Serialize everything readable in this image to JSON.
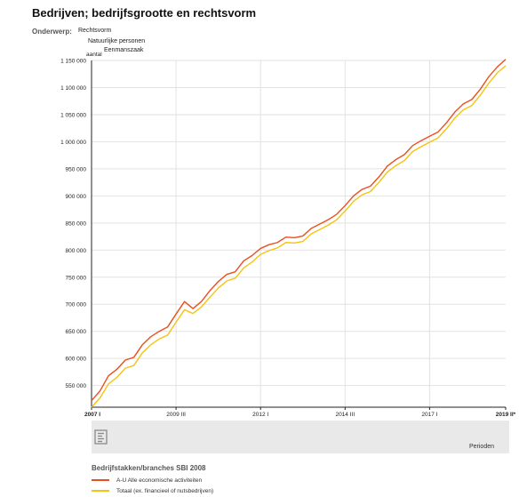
{
  "title": "Bedrijven; bedrijfsgrootte en rechtsvorm",
  "subject": {
    "label": "Onderwerp:",
    "lines": [
      "Rechtsvorm",
      "Natuurlijke personen",
      "Eenmanszaak"
    ]
  },
  "colors": {
    "series1": "#e8501e",
    "series2": "#f4c40f",
    "grid": "#e2e2e2",
    "icon_box": "#e9e9e9",
    "icon": "#8a8a8a"
  },
  "legend": {
    "title": "Bedrijfstakken/branches SBI 2008"
  },
  "chart_data": {
    "type": "line",
    "ylabel": "aantal",
    "xlabel": "Perioden",
    "ylim": [
      510000,
      1150000
    ],
    "yticks": [
      {
        "value": 550000,
        "label": "550 000"
      },
      {
        "value": 600000,
        "label": "600 000"
      },
      {
        "value": 650000,
        "label": "650 000"
      },
      {
        "value": 700000,
        "label": "700 000"
      },
      {
        "value": 750000,
        "label": "750 000"
      },
      {
        "value": 800000,
        "label": "800 000"
      },
      {
        "value": 850000,
        "label": "850 000"
      },
      {
        "value": 900000,
        "label": "900 000"
      },
      {
        "value": 950000,
        "label": "950 000"
      },
      {
        "value": 1000000,
        "label": "1 000 000"
      },
      {
        "value": 1050000,
        "label": "1 050 000"
      },
      {
        "value": 1100000,
        "label": "1 100 000"
      },
      {
        "value": 1150000,
        "label": "1 150 000"
      }
    ],
    "x": [
      "2007 I",
      "2007 II",
      "2007 III",
      "2007 IV",
      "2008 I",
      "2008 II",
      "2008 III",
      "2008 IV",
      "2009 I",
      "2009 II",
      "2009 III",
      "2009 IV",
      "2010 I",
      "2010 II",
      "2010 III",
      "2010 IV",
      "2011 I",
      "2011 II",
      "2011 III",
      "2011 IV",
      "2012 I",
      "2012 II",
      "2012 III",
      "2012 IV",
      "2013 I",
      "2013 II",
      "2013 III",
      "2013 IV",
      "2014 I",
      "2014 II",
      "2014 III",
      "2014 IV",
      "2015 I",
      "2015 II",
      "2015 III",
      "2015 IV",
      "2016 I",
      "2016 II",
      "2016 III",
      "2016 IV",
      "2017 I",
      "2017 II",
      "2017 III",
      "2017 IV",
      "2018 I",
      "2018 II",
      "2018 III",
      "2018 IV",
      "2019 I",
      "2019 II"
    ],
    "xticks": [
      {
        "index": 0,
        "label": "2007 I",
        "bold": true,
        "anchor": "start"
      },
      {
        "index": 10,
        "label": "2009 III",
        "bold": false,
        "anchor": "middle"
      },
      {
        "index": 20,
        "label": "2012 I",
        "bold": false,
        "anchor": "middle"
      },
      {
        "index": 30,
        "label": "2014 III",
        "bold": false,
        "anchor": "middle"
      },
      {
        "index": 40,
        "label": "2017 I",
        "bold": false,
        "anchor": "middle"
      },
      {
        "index": 49,
        "label": "2019 II*",
        "bold": true,
        "anchor": "middle"
      }
    ],
    "series": [
      {
        "name": "A-U Alle economische activiteiten",
        "values": [
          522000,
          540000,
          568000,
          580000,
          597000,
          602000,
          625000,
          640000,
          650000,
          658000,
          682000,
          705000,
          692000,
          705000,
          725000,
          742000,
          755000,
          760000,
          780000,
          790000,
          803000,
          810000,
          814000,
          824000,
          823000,
          826000,
          840000,
          848000,
          856000,
          866000,
          882000,
          900000,
          912000,
          918000,
          935000,
          955000,
          967000,
          976000,
          993000,
          1002000,
          1010000,
          1018000,
          1035000,
          1055000,
          1070000,
          1078000,
          1097000,
          1120000,
          1138000,
          1152000
        ]
      },
      {
        "name": "Totaal (ex. financieel of nutsbedrijven)",
        "values": [
          510000,
          527000,
          553000,
          565000,
          582000,
          587000,
          610000,
          625000,
          636000,
          643000,
          667000,
          690000,
          683000,
          695000,
          713000,
          730000,
          743000,
          748000,
          767000,
          778000,
          792000,
          799000,
          804000,
          814000,
          813000,
          816000,
          830000,
          838000,
          846000,
          856000,
          872000,
          890000,
          902000,
          908000,
          925000,
          944000,
          956000,
          965000,
          982000,
          991000,
          999000,
          1007000,
          1024000,
          1044000,
          1059000,
          1067000,
          1086000,
          1108000,
          1127000,
          1140000
        ]
      }
    ]
  }
}
